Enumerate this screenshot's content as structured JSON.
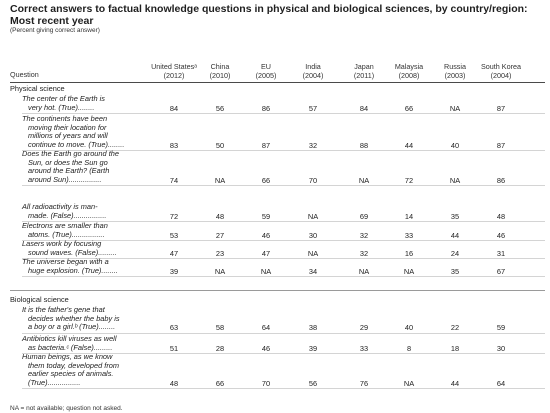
{
  "title": "Correct answers to factual knowledge questions in physical and biological sciences, by country/region: Most recent year",
  "subtitle": "(Percent giving correct answer)",
  "question_header": "Question",
  "columns": [
    {
      "name": "United Statesᵃ",
      "year": "(2012)"
    },
    {
      "name": "China",
      "year": "(2010)"
    },
    {
      "name": "EU",
      "year": "(2005)"
    },
    {
      "name": "India",
      "year": "(2004)"
    },
    {
      "name": "Japan",
      "year": "(2011)"
    },
    {
      "name": "Malaysia",
      "year": "(2008)"
    },
    {
      "name": "Russia",
      "year": "(2003)"
    },
    {
      "name": "South Korea",
      "year": "(2004)"
    }
  ],
  "sections": [
    {
      "label": "Physical science",
      "rows": [
        {
          "lines": [
            "The center of the Earth is",
            "very hot. (True)........"
          ],
          "values": [
            "84",
            "56",
            "86",
            "57",
            "84",
            "66",
            "NA",
            "87"
          ]
        },
        {
          "lines": [
            "The continents have been",
            "moving their location for",
            "millions of years and will",
            "continue to move. (True)........"
          ],
          "values": [
            "83",
            "50",
            "87",
            "32",
            "88",
            "44",
            "40",
            "87"
          ]
        },
        {
          "lines": [
            "Does the Earth go around the",
            "Sun, or does the Sun go",
            "around the Earth? (Earth",
            "around Sun)................"
          ],
          "values": [
            "74",
            "NA",
            "66",
            "70",
            "NA",
            "72",
            "NA",
            "86"
          ]
        },
        {
          "lines": [
            "All radioactivity is man-",
            "made. (False)................"
          ],
          "values": [
            "72",
            "48",
            "59",
            "NA",
            "69",
            "14",
            "35",
            "48"
          ]
        },
        {
          "lines": [
            "Electrons are smaller than",
            "atoms. (True)................"
          ],
          "values": [
            "53",
            "27",
            "46",
            "30",
            "32",
            "33",
            "44",
            "46"
          ]
        },
        {
          "lines": [
            "Lasers work by focusing",
            "sound waves. (False)........."
          ],
          "values": [
            "47",
            "23",
            "47",
            "NA",
            "32",
            "16",
            "24",
            "31"
          ]
        },
        {
          "lines": [
            "The universe began with a",
            "huge explosion. (True)........"
          ],
          "values": [
            "39",
            "NA",
            "NA",
            "34",
            "NA",
            "NA",
            "35",
            "67"
          ]
        }
      ]
    },
    {
      "label": "Biological science",
      "rows": [
        {
          "lines": [
            "It is the father's gene that",
            "decides whether the baby is",
            "a boy or a girl.ᵇ (True)........"
          ],
          "values": [
            "63",
            "58",
            "64",
            "38",
            "29",
            "40",
            "22",
            "59"
          ]
        },
        {
          "lines": [
            "Antibiotics kill viruses as well",
            "as bacteria.ᶜ (False)........."
          ],
          "values": [
            "51",
            "28",
            "46",
            "39",
            "33",
            "8",
            "18",
            "30"
          ]
        },
        {
          "lines": [
            "Human beings, as we know",
            "them today, developed from",
            "earlier species of animals.",
            "(True)................"
          ],
          "values": [
            "48",
            "66",
            "70",
            "56",
            "76",
            "NA",
            "44",
            "64"
          ]
        }
      ]
    }
  ],
  "footnote": "NA = not available; question not asked."
}
